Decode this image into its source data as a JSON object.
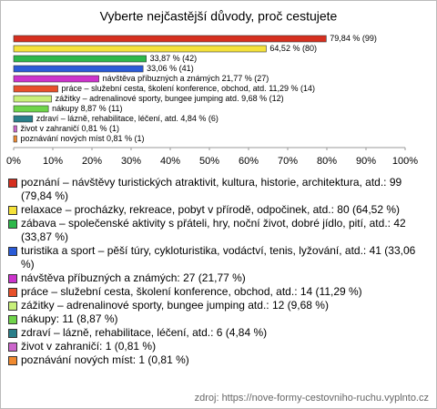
{
  "chart_data": {
    "type": "bar",
    "orientation": "horizontal",
    "title": "Vyberte nejčastější důvody, proč cestujete",
    "categories": [
      "poznání – návštěvy turistických atraktivit, kultura, historie, architektura, atd.: 99 (79,84 %)",
      "relaxace – procházky, rekreace, pobyt v přírodě, odpočinek, atd.: 80 (64,52 %)",
      "zábava – společenské aktivity s přáteli, hry, noční život, dobré jídlo, pití, atd.: 42 (33,87 %)",
      "turistika a sport – pěší túry, cykloturistika, vodáctví, tenis, lyžování, atd.: 41 (33,06 %)",
      "návštěva příbuzných a známých: 27 (21,77 %)",
      "práce – služební cesta, školení konference, obchod, atd.: 14 (11,29 %)",
      "zážitky – adrenalinové sporty, bungee jumping atd.: 12 (9,68 %)",
      "nákupy: 11 (8,87 %)",
      "zdraví – lázně, rehabilitace, léčení, atd.: 6 (4,84 %)",
      "život v zahraničí: 1 (0,81 %)",
      "poznávání nových míst: 1 (0,81 %)"
    ],
    "values": [
      79.84,
      64.52,
      33.87,
      33.06,
      21.77,
      11.29,
      9.68,
      8.87,
      4.84,
      0.81,
      0.81
    ],
    "value_labels": [
      "79,84 % (99)",
      "64,52 % (80)",
      "33,87 % (42)",
      "33,06 % (41)",
      "návštěva příbuzných a známých 21,77 % (27)",
      "práce – služební cesta, školení konference, obchod, atd. 11,29 % (14)",
      "zážitky – adrenalinové sporty, bungee jumping atd. 9,68 % (12)",
      "nákupy 8,87 % (11)",
      "zdraví – lázně, rehabilitace, léčení, atd. 4,84 % (6)",
      "život v zahraničí 0,81 % (1)",
      "poznávání nových míst 0,81 % (1)"
    ],
    "colors": [
      "#d62f1f",
      "#f5e23a",
      "#2db84a",
      "#2a5bd7",
      "#cc33cc",
      "#e8502a",
      "#c8f07a",
      "#6fd44a",
      "#2a7f8a",
      "#cc66cc",
      "#f08a30"
    ],
    "xlim": [
      0,
      100
    ],
    "xticks": [
      {
        "value": 0,
        "label": "0%"
      },
      {
        "value": 10,
        "label": "10%"
      },
      {
        "value": 20,
        "label": "20%"
      },
      {
        "value": 30,
        "label": "30%"
      },
      {
        "value": 40,
        "label": "40%"
      },
      {
        "value": 50,
        "label": "50%"
      },
      {
        "value": 60,
        "label": "60%"
      },
      {
        "value": 70,
        "label": "70%"
      },
      {
        "value": 80,
        "label": "80%"
      },
      {
        "value": 90,
        "label": "90%"
      },
      {
        "value": 100,
        "label": "100%"
      }
    ],
    "source": "zdroj: https://nove-formy-cestovniho-ruchu.vyplnto.cz"
  }
}
